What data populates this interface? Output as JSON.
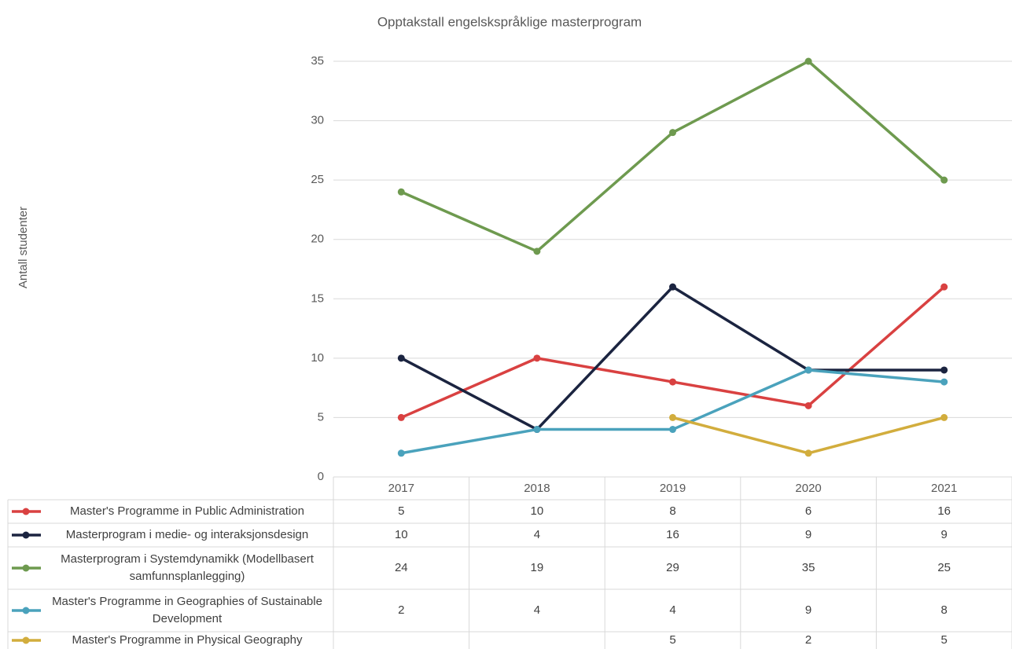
{
  "chart_data": {
    "type": "line",
    "title": "Opptakstall engelskspråklige masterprogram",
    "y_label": "Antall studenter",
    "categories": [
      "2017",
      "2018",
      "2019",
      "2020",
      "2021"
    ],
    "ylim": [
      0,
      35
    ],
    "yticks": [
      0,
      5,
      10,
      15,
      20,
      25,
      30,
      35
    ],
    "grid": true,
    "series": [
      {
        "name": "Master's Programme in Public Administration",
        "color": "#d94141",
        "values": [
          5,
          10,
          8,
          6,
          16
        ]
      },
      {
        "name": "Masterprogram i medie- og interaksjonsdesign",
        "color": "#1b2440",
        "values": [
          10,
          4,
          16,
          9,
          9
        ]
      },
      {
        "name": "Masterprogram i Systemdynamikk (Modellbasert samfunnsplanlegging)",
        "color": "#6e9a4f",
        "values": [
          24,
          19,
          29,
          35,
          25
        ]
      },
      {
        "name": "Master's Programme in Geographies of Sustainable Development",
        "color": "#4aa2bc",
        "values": [
          2,
          4,
          4,
          9,
          8
        ]
      },
      {
        "name": "Master's Programme in Physical Geography",
        "color": "#d2ad3d",
        "values": [
          null,
          null,
          5,
          2,
          5
        ]
      }
    ]
  }
}
